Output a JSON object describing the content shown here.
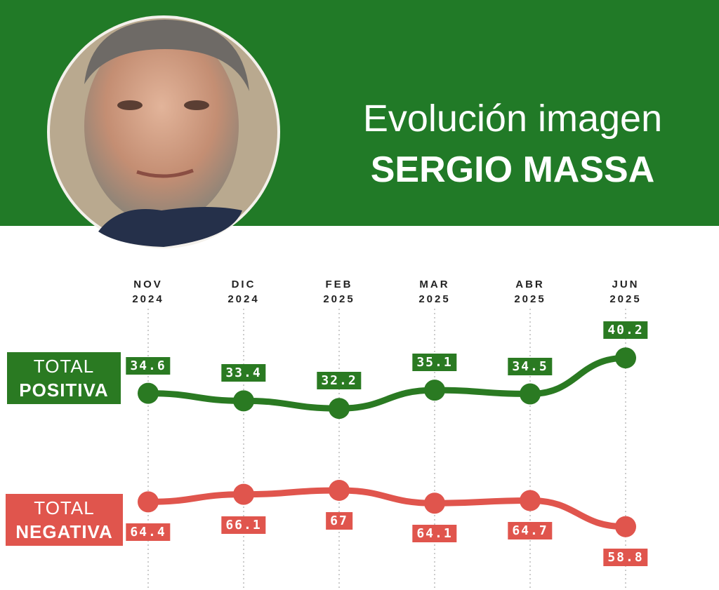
{
  "chart_data": {
    "type": "line",
    "title": "Evolución imagen",
    "subtitle": "SERGIO MASSA",
    "categories": [
      "NOV 2024",
      "DIC 2024",
      "FEB 2025",
      "MAR 2025",
      "ABR 2025",
      "JUN 2025"
    ],
    "series": [
      {
        "name": "TOTAL POSITIVA",
        "color": "#2a7a22",
        "values": [
          34.6,
          33.4,
          32.2,
          35.1,
          34.5,
          40.2
        ]
      },
      {
        "name": "TOTAL NEGATIVA",
        "color": "#e0554d",
        "axis": "y2",
        "values": [
          64.4,
          66.1,
          67,
          64.1,
          64.7,
          58.8
        ]
      }
    ],
    "ylim": [
      8,
      48
    ],
    "y2lim": [
      51,
      108
    ],
    "grid": true
  }
}
